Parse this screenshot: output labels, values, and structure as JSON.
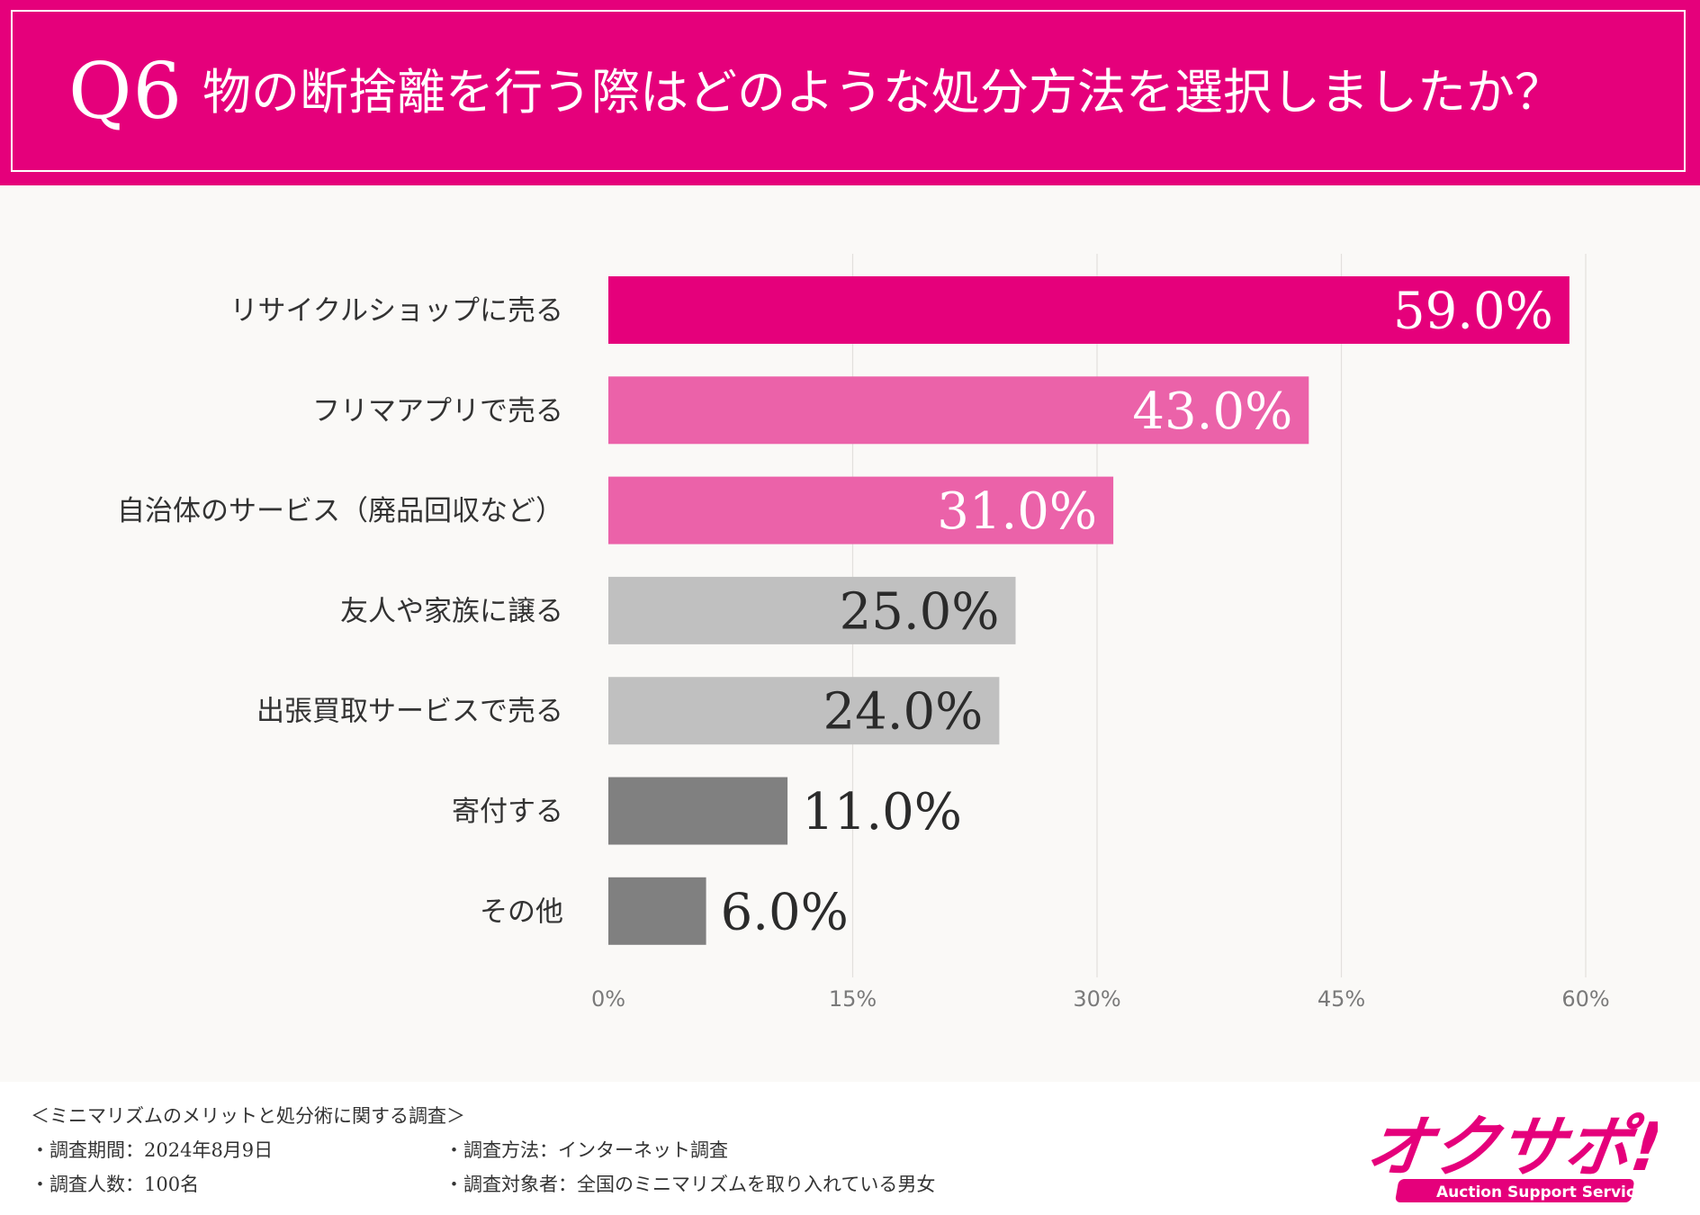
{
  "header": {
    "q_number": "Q6",
    "question": "物の断捨離を行う際はどのような処分方法を選択しましたか？"
  },
  "chart_data": {
    "type": "bar",
    "orientation": "horizontal",
    "categories": [
      "リサイクルショップに売る",
      "フリマアプリで売る",
      "自治体のサービス（廃品回収など）",
      "友人や家族に譲る",
      "出張買取サービスで売る",
      "寄付する",
      "その他"
    ],
    "values": [
      59.0,
      43.0,
      31.0,
      25.0,
      24.0,
      11.0,
      6.0
    ],
    "value_labels": [
      "59.0%",
      "43.0%",
      "31.0%",
      "25.0%",
      "24.0%",
      "11.0%",
      "6.0%"
    ],
    "bar_colors": [
      "#e5007b",
      "#eb62a9",
      "#eb62a9",
      "#c0c0c0",
      "#c0c0c0",
      "#808080",
      "#808080"
    ],
    "xlim": [
      0,
      60
    ],
    "xticks": [
      0,
      15,
      30,
      45,
      60
    ],
    "xtick_labels": [
      "0%",
      "15%",
      "30%",
      "45%",
      "60%"
    ],
    "grid": true,
    "legend": "none"
  },
  "footer": {
    "survey_title": "＜ミニマリズムのメリットと処分術に関する調査＞",
    "period": "・調査期間：2024年8月9日",
    "method": "・調査方法：インターネット調査",
    "respondents": "・調査人数：100名",
    "target": "・調査対象者：全国のミニマリズムを取り入れている男女"
  },
  "logo": {
    "brand_text": "オクサポ!",
    "tagline": "Auction Support Service",
    "color": "#e5007b"
  }
}
